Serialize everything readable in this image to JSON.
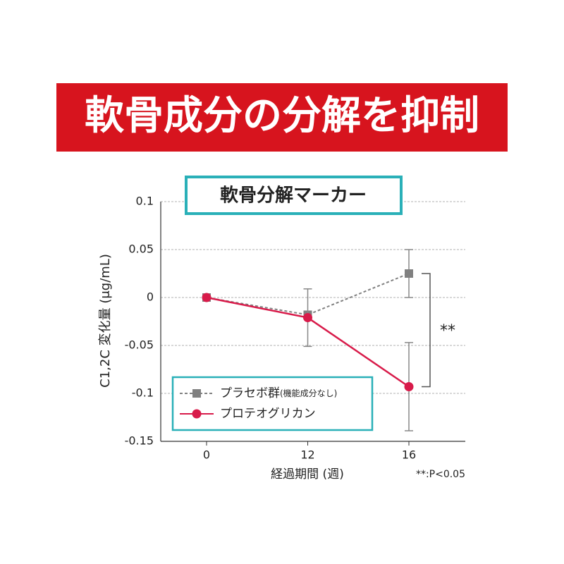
{
  "banner": "軟骨成分の分解を抑制",
  "chart_data": {
    "type": "line",
    "title": "軟骨分解マーカー",
    "categories": [
      "0",
      "12",
      "16"
    ],
    "x_label": "経過期間 (週)",
    "y_label": "C1,2C 変化量 (μg/mL)",
    "ylim": [
      -0.15,
      0.1
    ],
    "yticks": [
      0.1,
      0.05,
      0,
      -0.05,
      -0.1,
      -0.15
    ],
    "grid": true,
    "series": [
      {
        "name": "プラセボ群",
        "legend_note": "(機能成分なし)",
        "color": "#808080",
        "dashed": true,
        "marker": "square",
        "values": [
          0,
          -0.018,
          0.025
        ],
        "errors": [
          null,
          null,
          0.025
        ]
      },
      {
        "name": "プロテオグリカン",
        "color": "#d81b4a",
        "dashed": false,
        "marker": "circle",
        "values": [
          0,
          -0.021,
          -0.093
        ],
        "errors": [
          null,
          0.03,
          0.046
        ]
      }
    ],
    "significance": "**",
    "footnote": "**:P<0.05"
  }
}
